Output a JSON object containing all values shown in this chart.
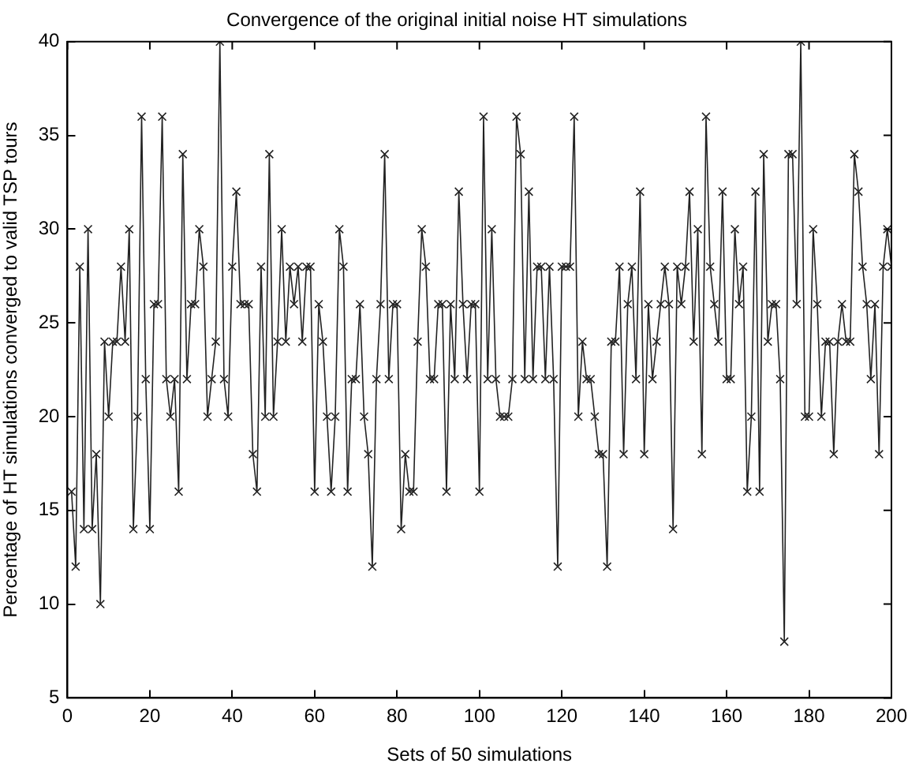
{
  "chart_data": {
    "type": "line",
    "title": "Convergence of the original initial noise HT simulations",
    "xlabel": "Sets of 50 simulations",
    "ylabel": "Percentage of HT simulations converged to valid TSP tours",
    "x": [
      1,
      2,
      3,
      4,
      5,
      6,
      7,
      8,
      9,
      10,
      11,
      12,
      13,
      14,
      15,
      16,
      17,
      18,
      19,
      20,
      21,
      22,
      23,
      24,
      25,
      26,
      27,
      28,
      29,
      30,
      31,
      32,
      33,
      34,
      35,
      36,
      37,
      38,
      39,
      40,
      41,
      42,
      43,
      44,
      45,
      46,
      47,
      48,
      49,
      50,
      51,
      52,
      53,
      54,
      55,
      56,
      57,
      58,
      59,
      60,
      61,
      62,
      63,
      64,
      65,
      66,
      67,
      68,
      69,
      70,
      71,
      72,
      73,
      74,
      75,
      76,
      77,
      78,
      79,
      80,
      81,
      82,
      83,
      84,
      85,
      86,
      87,
      88,
      89,
      90,
      91,
      92,
      93,
      94,
      95,
      96,
      97,
      98,
      99,
      100,
      101,
      102,
      103,
      104,
      105,
      106,
      107,
      108,
      109,
      110,
      111,
      112,
      113,
      114,
      115,
      116,
      117,
      118,
      119,
      120,
      121,
      122,
      123,
      124,
      125,
      126,
      127,
      128,
      129,
      130,
      131,
      132,
      133,
      134,
      135,
      136,
      137,
      138,
      139,
      140,
      141,
      142,
      143,
      144,
      145,
      146,
      147,
      148,
      149,
      150,
      151,
      152,
      153,
      154,
      155,
      156,
      157,
      158,
      159,
      160,
      161,
      162,
      163,
      164,
      165,
      166,
      167,
      168,
      169,
      170,
      171,
      172,
      173,
      174,
      175,
      176,
      177,
      178,
      179,
      180,
      181,
      182,
      183,
      184,
      185,
      186,
      187,
      188,
      189,
      190,
      191,
      192,
      193,
      194,
      195,
      196,
      197,
      198,
      199,
      200
    ],
    "series": [
      {
        "color": "#222222",
        "values": [
          16,
          12,
          28,
          14,
          30,
          14,
          18,
          10,
          24,
          20,
          24,
          24,
          28,
          24,
          30,
          14,
          20,
          36,
          22,
          14,
          26,
          26,
          36,
          22,
          20,
          22,
          16,
          34,
          22,
          26,
          26,
          30,
          28,
          20,
          22,
          24,
          40,
          22,
          20,
          28,
          32,
          26,
          26,
          26,
          18,
          16,
          28,
          20,
          34,
          20,
          24,
          30,
          24,
          28,
          26,
          28,
          24,
          28,
          28,
          16,
          26,
          24,
          20,
          16,
          20,
          30,
          28,
          16,
          22,
          22,
          26,
          20,
          18,
          12,
          22,
          26,
          34,
          22,
          26,
          26,
          14,
          18,
          16,
          16,
          24,
          30,
          28,
          22,
          22,
          26,
          26,
          16,
          26,
          22,
          32,
          26,
          22,
          26,
          26,
          16,
          36,
          22,
          30,
          22,
          20,
          20,
          20,
          22,
          36,
          34,
          22,
          32,
          22,
          28,
          28,
          22,
          28,
          22,
          12,
          28,
          28,
          28,
          36,
          20,
          24,
          22,
          22,
          20,
          18,
          18,
          12,
          24,
          24,
          28,
          18,
          26,
          28,
          22,
          32,
          18,
          26,
          22,
          24,
          26,
          28,
          26,
          14,
          28,
          26,
          28,
          32,
          24,
          30,
          18,
          36,
          28,
          26,
          24,
          32,
          22,
          22,
          30,
          26,
          28,
          16,
          20,
          32,
          16,
          34,
          24,
          26,
          26,
          22,
          8,
          34,
          34,
          26,
          40,
          20,
          20,
          30,
          26,
          20,
          24,
          24,
          18,
          24,
          26,
          24,
          24,
          34,
          32,
          28,
          26,
          22,
          26,
          18,
          28,
          30,
          28
        ]
      }
    ],
    "xlim": [
      0,
      200
    ],
    "xticks": [
      0,
      20,
      40,
      60,
      80,
      100,
      120,
      140,
      160,
      180,
      200
    ],
    "ylim": [
      5,
      40
    ],
    "yticks": [
      5,
      10,
      15,
      20,
      25,
      30,
      35,
      40
    ],
    "grid": false,
    "legend": false,
    "marker": "cross",
    "line_style": "solid"
  }
}
